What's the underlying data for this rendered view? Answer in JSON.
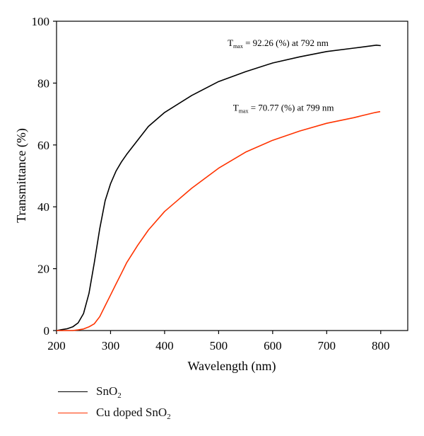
{
  "chart_data": {
    "type": "line",
    "xlabel": "Wavelength (nm)",
    "ylabel": "Transmittance (%)",
    "xlim": [
      200,
      850
    ],
    "ylim": [
      0,
      100
    ],
    "xticks": [
      200,
      300,
      400,
      500,
      600,
      700,
      800
    ],
    "yticks": [
      0,
      20,
      40,
      60,
      80,
      100
    ],
    "grid": false,
    "legend_position": "bottom-left, below plot",
    "series": [
      {
        "name": "SnO2",
        "color": "#000000",
        "x": [
          200,
          210,
          220,
          230,
          240,
          250,
          260,
          270,
          280,
          290,
          300,
          310,
          320,
          330,
          350,
          370,
          400,
          450,
          500,
          550,
          600,
          650,
          700,
          750,
          792,
          800
        ],
        "y": [
          0,
          0.3,
          0.6,
          1.2,
          2.5,
          5.5,
          12,
          22,
          33,
          42,
          47.5,
          51.5,
          54.5,
          57,
          61.5,
          66,
          70.5,
          76,
          80.5,
          83.7,
          86.5,
          88.5,
          90.2,
          91.3,
          92.26,
          92.1
        ]
      },
      {
        "name": "Cu doped SnO2",
        "color": "#ff3300",
        "x": [
          200,
          230,
          240,
          250,
          260,
          270,
          280,
          290,
          300,
          310,
          320,
          330,
          350,
          370,
          400,
          450,
          500,
          550,
          600,
          650,
          700,
          750,
          790,
          799
        ],
        "y": [
          0,
          0,
          0.2,
          0.5,
          1.2,
          2.2,
          4.5,
          8,
          11.5,
          15,
          18.5,
          22,
          27.5,
          32.5,
          38.5,
          46,
          52.5,
          57.7,
          61.5,
          64.5,
          67,
          68.8,
          70.5,
          70.77
        ]
      }
    ],
    "annotations": [
      {
        "label": "T",
        "sub": "max",
        "text": " = 92.26 (%) at 792 nm",
        "x": 610,
        "y": 92
      },
      {
        "label": "T",
        "sub": "max",
        "text": " = 70.77 (%) at 799 nm",
        "x": 620,
        "y": 71
      }
    ],
    "legend": [
      {
        "name": "SnO",
        "sub": "2",
        "color": "#000000"
      },
      {
        "name": "Cu doped SnO",
        "sub": "2",
        "color": "#ff3300"
      }
    ]
  }
}
